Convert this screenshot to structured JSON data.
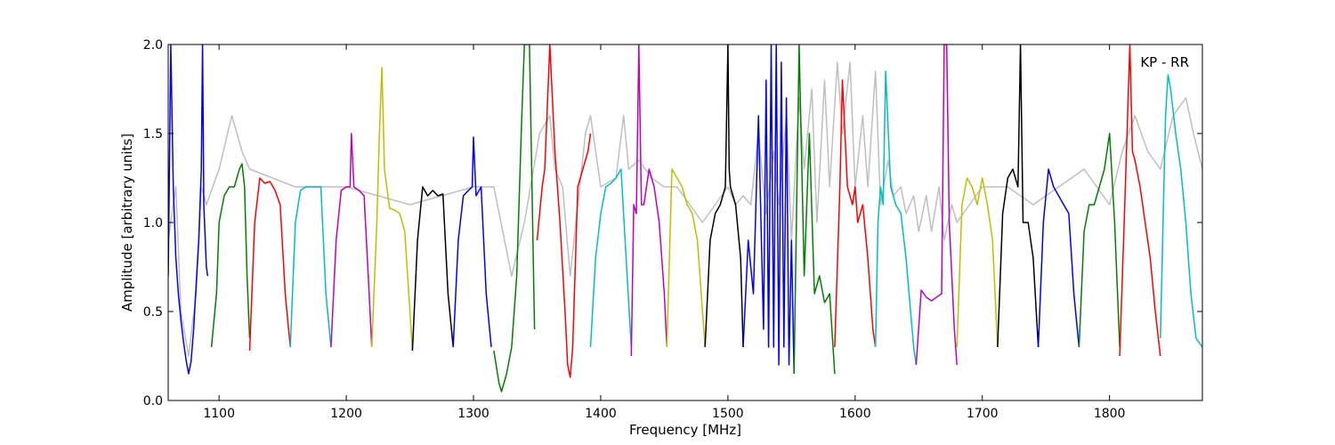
{
  "chart_data": {
    "type": "line",
    "title": "",
    "annotation": "KP - RR",
    "xlabel": "Frequency [MHz]",
    "ylabel": "Amplitude [arbitrary units]",
    "xlim": [
      1060,
      1873
    ],
    "ylim": [
      0.0,
      2.0
    ],
    "xticks": [
      1100,
      1200,
      1300,
      1400,
      1500,
      1600,
      1700,
      1800
    ],
    "yticks": [
      0.0,
      0.5,
      1.0,
      1.5,
      2.0
    ],
    "ytick_labels": [
      "0.0",
      "0.5",
      "1.0",
      "1.5",
      "2.0"
    ],
    "grid": false,
    "legend": "none",
    "background_series": {
      "color": "#bfbfbf",
      "x": [
        1060,
        1066,
        1070,
        1076,
        1082,
        1086,
        1090,
        1100,
        1110,
        1118,
        1124,
        1160,
        1200,
        1250,
        1300,
        1316,
        1330,
        1340,
        1352,
        1360,
        1364,
        1370,
        1376,
        1382,
        1388,
        1392,
        1400,
        1412,
        1418,
        1422,
        1430,
        1440,
        1450,
        1460,
        1470,
        1480,
        1490,
        1500,
        1506,
        1512,
        1518,
        1524,
        1530,
        1536,
        1540,
        1546,
        1550,
        1556,
        1560,
        1566,
        1570,
        1576,
        1580,
        1586,
        1590,
        1596,
        1600,
        1606,
        1610,
        1616,
        1620,
        1626,
        1630,
        1636,
        1640,
        1646,
        1650,
        1656,
        1660,
        1666,
        1670,
        1676,
        1680,
        1690,
        1700,
        1720,
        1740,
        1760,
        1780,
        1800,
        1810,
        1820,
        1830,
        1840,
        1850,
        1860,
        1866,
        1873
      ],
      "y": [
        0.9,
        1.2,
        0.5,
        0.25,
        0.6,
        1.2,
        1.1,
        1.3,
        1.6,
        1.4,
        1.3,
        1.2,
        1.2,
        1.1,
        1.2,
        1.2,
        0.7,
        1.0,
        1.5,
        1.6,
        1.3,
        1.2,
        0.7,
        1.1,
        1.5,
        1.6,
        1.2,
        1.25,
        1.6,
        1.3,
        1.35,
        1.25,
        1.2,
        1.2,
        1.1,
        1.0,
        1.1,
        1.2,
        1.1,
        1.15,
        1.1,
        1.5,
        1.05,
        1.4,
        1.1,
        1.6,
        0.9,
        1.7,
        1.3,
        1.75,
        1.0,
        1.8,
        1.2,
        1.9,
        1.5,
        1.9,
        1.2,
        1.6,
        1.2,
        1.85,
        1.1,
        1.35,
        1.15,
        1.2,
        1.05,
        1.15,
        0.95,
        1.15,
        0.95,
        1.2,
        0.9,
        1.1,
        1.0,
        1.1,
        1.2,
        1.2,
        1.1,
        1.2,
        1.3,
        1.1,
        1.4,
        1.6,
        1.4,
        1.3,
        1.6,
        1.7,
        1.5,
        1.3
      ]
    },
    "series": [
      {
        "color": "#0000ff",
        "x": [
          1060,
          1062,
          1064,
          1066,
          1068,
          1070,
          1072,
          1074,
          1076,
          1078,
          1080,
          1082,
          1084,
          1086,
          1087,
          1088,
          1090,
          1091
        ],
        "y": [
          0.7,
          2.0,
          1.2,
          0.8,
          0.6,
          0.45,
          0.33,
          0.23,
          0.15,
          0.22,
          0.4,
          0.65,
          0.9,
          1.3,
          2.0,
          1.1,
          0.75,
          0.7
        ]
      },
      {
        "color": "#008000",
        "x": [
          1094,
          1098,
          1100,
          1104,
          1108,
          1112,
          1116,
          1118,
          1120,
          1122,
          1124
        ],
        "y": [
          0.3,
          0.6,
          1.0,
          1.15,
          1.2,
          1.2,
          1.3,
          1.33,
          1.2,
          0.7,
          0.35
        ]
      },
      {
        "color": "#ff0000",
        "x": [
          1124,
          1128,
          1132,
          1136,
          1140,
          1144,
          1148,
          1152,
          1156
        ],
        "y": [
          0.28,
          1.0,
          1.25,
          1.22,
          1.23,
          1.18,
          1.1,
          0.6,
          0.3
        ]
      },
      {
        "color": "#00bfbf",
        "x": [
          1156,
          1160,
          1164,
          1168,
          1172,
          1176,
          1180,
          1184,
          1188
        ],
        "y": [
          0.3,
          1.0,
          1.18,
          1.2,
          1.2,
          1.2,
          1.2,
          0.6,
          0.3
        ]
      },
      {
        "color": "#bf00bf",
        "x": [
          1188,
          1192,
          1196,
          1200,
          1203,
          1204,
          1206,
          1210,
          1214,
          1218,
          1220
        ],
        "y": [
          0.3,
          0.9,
          1.18,
          1.2,
          1.2,
          1.5,
          1.2,
          1.18,
          1.15,
          0.6,
          0.3
        ]
      },
      {
        "color": "#bfbf00",
        "x": [
          1220,
          1224,
          1226,
          1228,
          1230,
          1234,
          1238,
          1242,
          1246,
          1250,
          1252
        ],
        "y": [
          0.3,
          1.0,
          1.5,
          1.87,
          1.3,
          1.08,
          1.07,
          1.05,
          0.95,
          0.5,
          0.28
        ]
      },
      {
        "color": "#000000",
        "x": [
          1252,
          1256,
          1260,
          1264,
          1268,
          1272,
          1276,
          1280,
          1284
        ],
        "y": [
          0.28,
          0.9,
          1.2,
          1.15,
          1.18,
          1.15,
          1.16,
          0.6,
          0.3
        ]
      },
      {
        "color": "#0000ff",
        "x": [
          1284,
          1288,
          1292,
          1296,
          1299,
          1300,
          1302,
          1306,
          1310,
          1314
        ],
        "y": [
          0.3,
          0.9,
          1.15,
          1.18,
          1.2,
          1.48,
          1.15,
          1.2,
          0.6,
          0.3
        ]
      },
      {
        "color": "#008000",
        "x": [
          1316,
          1320,
          1322,
          1326,
          1330,
          1334,
          1338,
          1340,
          1342,
          1344
        ],
        "y": [
          0.28,
          0.1,
          0.05,
          0.15,
          0.3,
          0.7,
          1.6,
          2.0,
          2.0,
          2.0
        ]
      },
      {
        "color": "#008000",
        "x": [
          1344,
          1348
        ],
        "y": [
          2.0,
          0.4
        ]
      },
      {
        "color": "#ff0000",
        "x": [
          1350,
          1354,
          1356,
          1360,
          1364,
          1368,
          1372,
          1374,
          1376,
          1378,
          1382,
          1386,
          1390,
          1392
        ],
        "y": [
          0.9,
          1.2,
          1.3,
          2.0,
          1.4,
          1.0,
          0.5,
          0.2,
          0.13,
          0.3,
          1.2,
          1.3,
          1.4,
          1.5
        ]
      },
      {
        "color": "#00bfbf",
        "x": [
          1392,
          1396,
          1400,
          1404,
          1408,
          1412,
          1416,
          1420,
          1424
        ],
        "y": [
          0.3,
          0.8,
          1.05,
          1.2,
          1.22,
          1.25,
          1.3,
          0.8,
          0.3
        ]
      },
      {
        "color": "#bf00bf",
        "x": [
          1424,
          1426,
          1428,
          1430,
          1432,
          1434,
          1438,
          1442,
          1446,
          1450,
          1452
        ],
        "y": [
          0.25,
          1.1,
          1.05,
          2.0,
          1.1,
          1.1,
          1.3,
          1.2,
          1.0,
          0.6,
          0.3
        ]
      },
      {
        "color": "#bfbf00",
        "x": [
          1452,
          1456,
          1460,
          1464,
          1468,
          1472,
          1476,
          1480,
          1482
        ],
        "y": [
          0.3,
          1.3,
          1.25,
          1.2,
          1.1,
          1.05,
          0.9,
          0.5,
          0.3
        ]
      },
      {
        "color": "#000000",
        "x": [
          1482,
          1486,
          1490,
          1494,
          1498,
          1500,
          1501,
          1502,
          1506,
          1510,
          1512
        ],
        "y": [
          0.3,
          0.9,
          1.05,
          1.1,
          1.2,
          2.0,
          1.3,
          1.2,
          1.1,
          0.8,
          0.3
        ]
      },
      {
        "color": "#0000ff",
        "x": [
          1512,
          1516,
          1520,
          1524,
          1528,
          1530,
          1532,
          1534,
          1536,
          1538,
          1540,
          1542,
          1544,
          1546,
          1548,
          1550,
          1552
        ],
        "y": [
          0.3,
          0.9,
          0.6,
          1.6,
          0.4,
          1.8,
          0.3,
          2.0,
          0.3,
          2.0,
          0.2,
          1.9,
          0.3,
          1.7,
          0.2,
          0.9,
          0.15
        ]
      },
      {
        "color": "#008000",
        "x": [
          1552,
          1556,
          1560,
          1564,
          1568,
          1572,
          1576,
          1580,
          1584
        ],
        "y": [
          0.15,
          2.0,
          0.7,
          1.5,
          0.6,
          0.7,
          0.55,
          0.6,
          0.15
        ]
      },
      {
        "color": "#ff0000",
        "x": [
          1584,
          1588,
          1590,
          1594,
          1598,
          1600,
          1602,
          1606,
          1610,
          1614,
          1616
        ],
        "y": [
          0.3,
          1.2,
          1.8,
          1.2,
          1.1,
          1.2,
          1.0,
          1.1,
          0.8,
          0.4,
          0.3
        ]
      },
      {
        "color": "#00bfbf",
        "x": [
          1616,
          1618,
          1620,
          1622,
          1624,
          1628,
          1632,
          1636,
          1640,
          1646,
          1648
        ],
        "y": [
          0.3,
          1.0,
          1.2,
          1.1,
          1.85,
          1.2,
          1.1,
          1.05,
          0.8,
          0.3,
          0.2
        ]
      },
      {
        "color": "#bf00bf",
        "x": [
          1648,
          1652,
          1656,
          1660,
          1664,
          1668,
          1670,
          1672,
          1674,
          1678,
          1680
        ],
        "y": [
          0.2,
          0.62,
          0.58,
          0.56,
          0.58,
          0.6,
          2.0,
          2.0,
          1.0,
          0.4,
          0.2
        ]
      },
      {
        "color": "#bfbf00",
        "x": [
          1680,
          1684,
          1688,
          1692,
          1696,
          1700,
          1704,
          1708,
          1712
        ],
        "y": [
          0.3,
          1.1,
          1.25,
          1.2,
          1.1,
          1.25,
          1.1,
          0.9,
          0.3
        ]
      },
      {
        "color": "#000000",
        "x": [
          1712,
          1716,
          1720,
          1724,
          1728,
          1730,
          1732,
          1736,
          1740,
          1744
        ],
        "y": [
          0.3,
          1.05,
          1.25,
          1.3,
          1.2,
          2.0,
          1.0,
          1.0,
          0.8,
          0.3
        ]
      },
      {
        "color": "#0000ff",
        "x": [
          1744,
          1748,
          1752,
          1756,
          1760,
          1764,
          1768,
          1772,
          1776
        ],
        "y": [
          0.3,
          1.0,
          1.3,
          1.2,
          1.15,
          1.1,
          1.05,
          0.6,
          0.3
        ]
      },
      {
        "color": "#008000",
        "x": [
          1776,
          1780,
          1784,
          1788,
          1792,
          1796,
          1800,
          1804,
          1808
        ],
        "y": [
          0.3,
          0.95,
          1.1,
          1.1,
          1.2,
          1.3,
          1.5,
          1.0,
          0.3
        ]
      },
      {
        "color": "#ff0000",
        "x": [
          1808,
          1812,
          1816,
          1818,
          1820,
          1824,
          1828,
          1832,
          1836,
          1840
        ],
        "y": [
          0.25,
          1.1,
          2.0,
          1.4,
          1.35,
          1.2,
          1.0,
          0.8,
          0.5,
          0.25
        ]
      },
      {
        "color": "#00bfbf",
        "x": [
          1840,
          1844,
          1846,
          1848,
          1852,
          1856,
          1860,
          1864,
          1868,
          1873
        ],
        "y": [
          0.35,
          1.6,
          1.83,
          1.75,
          1.5,
          1.3,
          1.0,
          0.6,
          0.35,
          0.3
        ]
      }
    ]
  }
}
